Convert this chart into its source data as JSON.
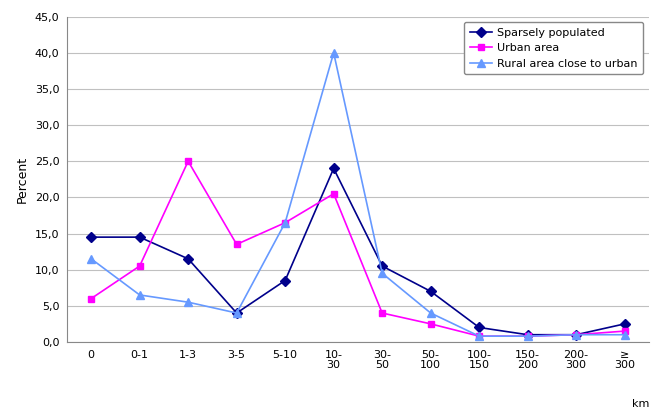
{
  "x_labels": [
    "0",
    "0-1",
    "1-3",
    "3-5",
    "5-10",
    "10-\n30",
    "30-\n50",
    "50-\n100",
    "100-\n150",
    "150-\n200",
    "200-\n300",
    "≥\n300"
  ],
  "ylabel": "Percent",
  "ylim": [
    0,
    45
  ],
  "yticks": [
    0.0,
    5.0,
    10.0,
    15.0,
    20.0,
    25.0,
    30.0,
    35.0,
    40.0,
    45.0
  ],
  "series": [
    {
      "label": "Sparsely populated",
      "color": "#00008B",
      "marker": "D",
      "markersize": 5,
      "values": [
        14.5,
        14.5,
        11.5,
        4.0,
        8.5,
        24.0,
        10.5,
        7.0,
        2.0,
        1.0,
        1.0,
        2.5
      ]
    },
    {
      "label": "Urban area",
      "color": "#FF00FF",
      "marker": "s",
      "markersize": 5,
      "values": [
        6.0,
        10.5,
        25.0,
        13.5,
        16.5,
        20.5,
        4.0,
        2.5,
        0.8,
        0.8,
        1.0,
        1.5
      ]
    },
    {
      "label": "Rural area close to urban",
      "color": "#6699FF",
      "marker": "^",
      "markersize": 6,
      "values": [
        11.5,
        6.5,
        5.5,
        4.0,
        16.5,
        40.0,
        9.5,
        4.0,
        0.8,
        0.8,
        1.0,
        1.0
      ]
    }
  ],
  "background_color": "#ffffff",
  "grid_color": "#c0c0c0"
}
